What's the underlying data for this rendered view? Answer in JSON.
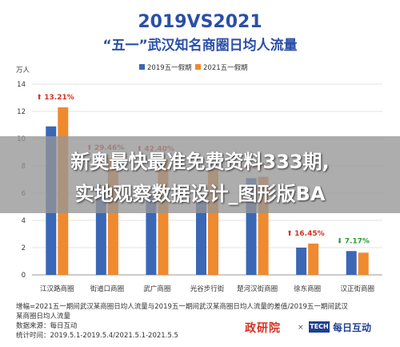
{
  "chart_data": {
    "type": "bar",
    "title": "2019VS2021",
    "subtitle": "“五一”武汉知名商圈日均人流量",
    "ylabel": "万人",
    "ylim": [
      0,
      14
    ],
    "yticks": [
      0,
      2,
      4,
      6,
      8,
      10,
      12,
      14
    ],
    "categories": [
      "江汉路商圈",
      "街道口商圈",
      "武广商圈",
      "光谷步行街",
      "楚河汉街商圈",
      "徐东商圈",
      "汉正街商圈"
    ],
    "series": [
      {
        "name": "2019五一假期",
        "color": "#3a67b6",
        "values": [
          10.9,
          6.6,
          6.0,
          5.5,
          7.1,
          2.0,
          1.75
        ]
      },
      {
        "name": "2021五一假期",
        "color": "#ef8a2e",
        "values": [
          12.3,
          8.6,
          8.5,
          7.8,
          7.2,
          2.3,
          1.63
        ]
      }
    ],
    "annotations": [
      {
        "text": "13.21%",
        "direction": "up"
      },
      {
        "text": "29.46%",
        "direction": "up"
      },
      {
        "text": "42.40%",
        "direction": "up"
      },
      {
        "text": "",
        "direction": "up"
      },
      {
        "text": "0.85%",
        "direction": "up"
      },
      {
        "text": "16.45%",
        "direction": "up"
      },
      {
        "text": "7.17%",
        "direction": "down"
      }
    ],
    "grid": true,
    "legend": "top-center"
  },
  "colors": {
    "title": "#2a4fa8",
    "up": "#d6301f",
    "down": "#2e9a3a"
  },
  "overlay": {
    "line1": "新奥最快最准免费资料333期,",
    "line2": "实地观察数据设计_图形版BA"
  },
  "footer": {
    "note1": "增幅=2021五一期间武汉某商圈日均人流量与2019五一期间武汉某商圈日均人流量的差值/2019五一期间武汉",
    "note2": "某商圈日均人流量",
    "source": "数据来源：每日互动",
    "period": "统计时间：2019.5.1-2019.5.4/2021.5.1-2021.5.5"
  },
  "logos": {
    "red": "政研院",
    "x": "×",
    "box": "TECH",
    "blue": "每日互动"
  }
}
